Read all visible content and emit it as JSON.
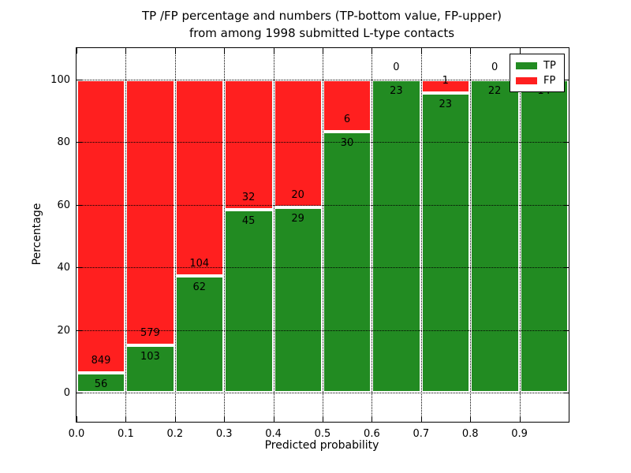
{
  "figure": {
    "title_line1": "TP /FP percentage and numbers (TP-bottom value, FP-upper)",
    "title_line2": "from among 1998 submitted L-type contacts",
    "background": "#ffffff"
  },
  "chart_data": {
    "type": "bar",
    "stacking": "percentage",
    "title": "TP /FP percentage and numbers (TP-bottom value, FP-upper)\nfrom among 1998 submitted L-type contacts",
    "xlabel": "Predicted probability",
    "ylabel": "Percentage",
    "total_contacts": 1998,
    "categories": [
      "0.0-0.1",
      "0.1-0.2",
      "0.2-0.3",
      "0.3-0.4",
      "0.4-0.5",
      "0.5-0.6",
      "0.6-0.7",
      "0.7-0.8",
      "0.8-0.9",
      "0.9-1.0"
    ],
    "bin_width": 0.1,
    "series": [
      {
        "name": "TP",
        "color": "#228B22",
        "counts": [
          56,
          103,
          62,
          45,
          29,
          30,
          23,
          23,
          22,
          14
        ]
      },
      {
        "name": "FP",
        "color": "#FF1F1F",
        "counts": [
          849,
          579,
          104,
          32,
          20,
          6,
          0,
          1,
          0,
          0
        ]
      }
    ],
    "tp_percent": [
      6.2,
      15.1,
      37.3,
      58.4,
      59.2,
      83.3,
      100.0,
      95.8,
      100.0,
      100.0
    ],
    "xticks": [
      "0.0",
      "0.1",
      "0.2",
      "0.3",
      "0.4",
      "0.5",
      "0.6",
      "0.7",
      "0.8",
      "0.9"
    ],
    "yticks": [
      0,
      20,
      40,
      60,
      80,
      100
    ],
    "xlim": [
      0.0,
      1.0
    ],
    "ylim": [
      -9,
      110
    ],
    "grid": "dotted black, horizontal at yticks and vertical at xticks",
    "legend": {
      "position": "upper right",
      "entries": [
        "TP",
        "FP"
      ]
    },
    "note": "last bin labels (0 and 14) partially hidden behind legend"
  }
}
